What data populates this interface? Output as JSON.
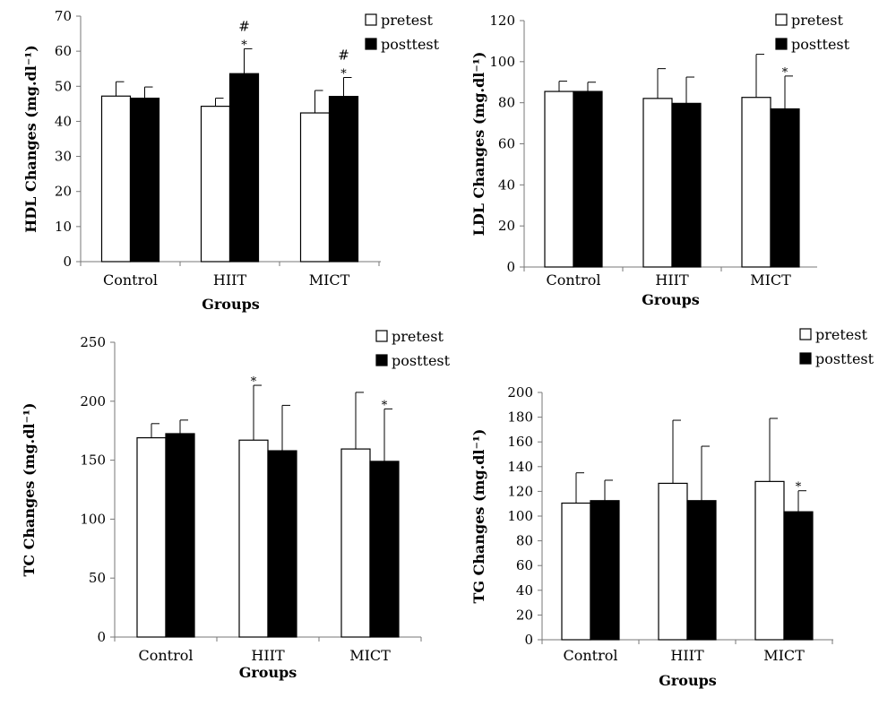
{
  "chart_data": [
    {
      "type": "bar",
      "categories": [
        "Control",
        "HIIT",
        "MICT"
      ],
      "series": [
        {
          "name": "pretest",
          "values": [
            47.2,
            44.3,
            42.4
          ],
          "error": [
            4.1,
            2.3,
            6.4
          ],
          "color": "#ffffff"
        },
        {
          "name": "posttest",
          "values": [
            46.6,
            53.6,
            47.1
          ],
          "error": [
            3.2,
            7.1,
            5.4
          ],
          "color": "#000000"
        }
      ],
      "ylim": [
        0,
        70
      ],
      "yticks": [
        0,
        10,
        20,
        30,
        40,
        50,
        60,
        70
      ],
      "xlabel": "Groups",
      "ylabel": "HDL Changes (mg.dl⁻¹)",
      "legend": "top-right",
      "annotations": [
        {
          "category": "HIIT",
          "series": "posttest",
          "marks": [
            "#",
            "*"
          ]
        },
        {
          "category": "MICT",
          "series": "posttest",
          "marks": [
            "#",
            "*"
          ]
        }
      ]
    },
    {
      "type": "bar",
      "categories": [
        "Control",
        "HIIT",
        "MICT"
      ],
      "series": [
        {
          "name": "pretest",
          "values": [
            85.5,
            82.1,
            82.6
          ],
          "error": [
            5.0,
            14.5,
            21.0
          ],
          "color": "#ffffff"
        },
        {
          "name": "posttest",
          "values": [
            85.5,
            79.7,
            77.0
          ],
          "error": [
            4.5,
            12.8,
            16.0
          ],
          "color": "#000000"
        }
      ],
      "ylim": [
        0,
        120
      ],
      "yticks": [
        0,
        20,
        40,
        60,
        80,
        100,
        120
      ],
      "xlabel": "Groups",
      "ylabel": "LDL Changes (mg.dl⁻¹)",
      "legend": "top-right",
      "annotations": [
        {
          "category": "MICT",
          "series": "posttest",
          "marks": [
            "*"
          ]
        }
      ]
    },
    {
      "type": "bar",
      "categories": [
        "Control",
        "HIIT",
        "MICT"
      ],
      "series": [
        {
          "name": "pretest",
          "values": [
            169,
            167,
            159.5
          ],
          "error": [
            12,
            46.5,
            48
          ],
          "color": "#ffffff"
        },
        {
          "name": "posttest",
          "values": [
            172.5,
            158,
            149
          ],
          "error": [
            11.5,
            38.5,
            44.5
          ],
          "color": "#000000"
        }
      ],
      "ylim": [
        0,
        250
      ],
      "yticks": [
        0,
        50,
        100,
        150,
        200,
        250
      ],
      "xlabel": "Groups",
      "ylabel": "TC Changes (mg.dl⁻¹)",
      "legend": "top-right",
      "annotations": [
        {
          "category": "HIIT",
          "series": "pretest",
          "marks": [
            "*"
          ]
        },
        {
          "category": "MICT",
          "series": "posttest",
          "marks": [
            "*"
          ]
        }
      ]
    },
    {
      "type": "bar",
      "categories": [
        "Control",
        "HIIT",
        "MICT"
      ],
      "series": [
        {
          "name": "pretest",
          "values": [
            110.5,
            126.5,
            128
          ],
          "error": [
            24.5,
            51,
            51
          ],
          "color": "#ffffff"
        },
        {
          "name": "posttest",
          "values": [
            112.5,
            112.5,
            103.5
          ],
          "error": [
            16.5,
            44,
            17
          ],
          "color": "#000000"
        }
      ],
      "ylim": [
        0,
        200
      ],
      "yticks": [
        0,
        20,
        40,
        60,
        80,
        100,
        120,
        140,
        160,
        180,
        200
      ],
      "xlabel": "Groups",
      "ylabel": "TG Changes (mg.dl⁻¹)",
      "legend": "top-right",
      "annotations": [
        {
          "category": "MICT",
          "series": "posttest",
          "marks": [
            "*"
          ]
        }
      ]
    }
  ]
}
